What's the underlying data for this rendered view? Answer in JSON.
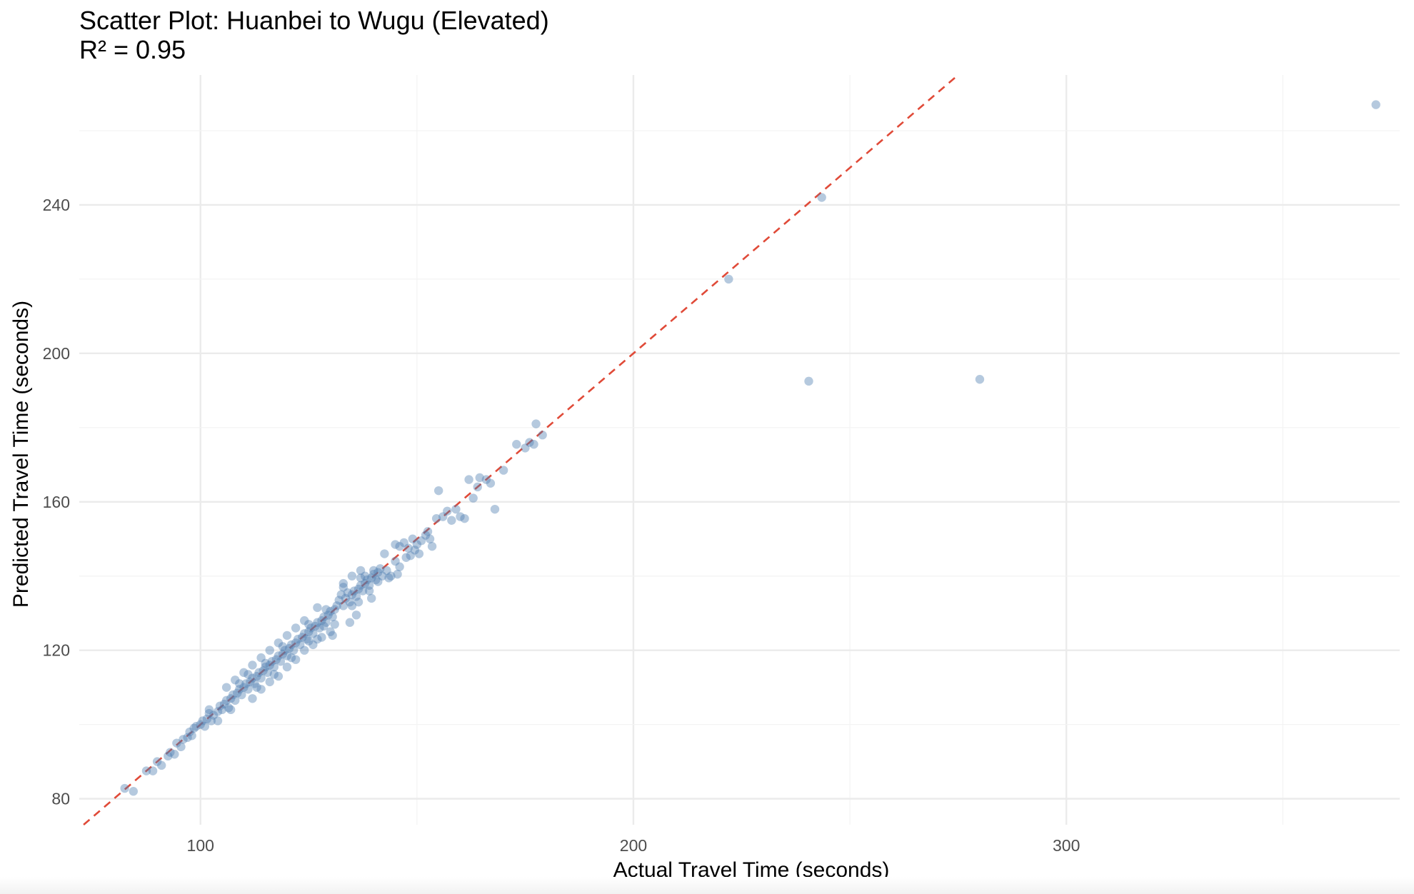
{
  "chart_data": {
    "type": "scatter",
    "title": "Scatter Plot: Huanbei to Wugu (Elevated)",
    "subtitle": "R² = 0.95",
    "xlabel": "Actual Travel Time (seconds)",
    "ylabel": "Predicted Travel Time (seconds)",
    "xlim": [
      72,
      377
    ],
    "ylim": [
      73,
      275
    ],
    "x_ticks": [
      100,
      200,
      300
    ],
    "y_ticks": [
      80,
      120,
      160,
      200,
      240
    ],
    "x_tick_labels": [
      "100",
      "200",
      "300"
    ],
    "y_tick_labels": [
      "80",
      "120",
      "160",
      "200",
      "240"
    ],
    "grid": true,
    "legend": "none",
    "colors": {
      "point": "#4f7fb0",
      "reference_line": "#e04a38"
    },
    "reference_line": {
      "style": "dashed",
      "slope": 1,
      "intercept": 0
    },
    "points": [
      [
        82.5,
        82.8
      ],
      [
        84.5,
        82
      ],
      [
        87.5,
        87.5
      ],
      [
        89,
        87.5
      ],
      [
        90,
        90
      ],
      [
        91,
        89
      ],
      [
        92.5,
        91.5
      ],
      [
        93,
        92.5
      ],
      [
        94,
        92
      ],
      [
        94.5,
        95
      ],
      [
        95.5,
        94
      ],
      [
        96,
        96
      ],
      [
        97,
        96.5
      ],
      [
        97.5,
        98
      ],
      [
        98,
        97
      ],
      [
        98.5,
        99
      ],
      [
        99,
        99.5
      ],
      [
        100,
        100
      ],
      [
        100.5,
        101
      ],
      [
        101,
        99.5
      ],
      [
        101.5,
        101.5
      ],
      [
        102,
        103
      ],
      [
        102.5,
        101
      ],
      [
        103,
        102.5
      ],
      [
        104,
        103.5
      ],
      [
        104.5,
        105
      ],
      [
        105,
        104
      ],
      [
        105.5,
        105.5
      ],
      [
        106,
        106.5
      ],
      [
        106.5,
        104.5
      ],
      [
        107,
        107
      ],
      [
        107.5,
        108
      ],
      [
        108,
        106.5
      ],
      [
        108.5,
        108.5
      ],
      [
        109,
        109.5
      ],
      [
        109.5,
        108
      ],
      [
        110,
        110
      ],
      [
        110.5,
        111
      ],
      [
        111,
        109.5
      ],
      [
        111.5,
        111.5
      ],
      [
        112,
        112.5
      ],
      [
        112.5,
        111
      ],
      [
        113,
        113
      ],
      [
        113.5,
        114
      ],
      [
        114,
        112.5
      ],
      [
        114.5,
        114.5
      ],
      [
        115,
        115.5
      ],
      [
        115.5,
        114
      ],
      [
        116,
        116
      ],
      [
        116.5,
        117
      ],
      [
        117,
        115.5
      ],
      [
        117.5,
        117.5
      ],
      [
        118,
        118.5
      ],
      [
        118.5,
        117
      ],
      [
        119,
        119
      ],
      [
        119.5,
        120
      ],
      [
        120,
        118.5
      ],
      [
        120.5,
        120.5
      ],
      [
        121,
        121.5
      ],
      [
        121.5,
        120
      ],
      [
        122,
        122
      ],
      [
        122.5,
        123
      ],
      [
        123,
        121.5
      ],
      [
        123.5,
        123.5
      ],
      [
        124,
        124.5
      ],
      [
        124.5,
        123
      ],
      [
        125,
        125
      ],
      [
        125.5,
        126
      ],
      [
        126,
        124.5
      ],
      [
        126.5,
        126.5
      ],
      [
        127,
        127.5
      ],
      [
        127.5,
        126
      ],
      [
        128,
        128
      ],
      [
        128.5,
        129
      ],
      [
        129,
        127.5
      ],
      [
        129.5,
        129.5
      ],
      [
        130,
        130.5
      ],
      [
        130.5,
        129
      ],
      [
        131,
        131
      ],
      [
        131.5,
        132
      ],
      [
        132,
        133.5
      ],
      [
        132.5,
        135
      ],
      [
        133,
        132
      ],
      [
        133.5,
        134
      ],
      [
        134,
        135.5
      ],
      [
        134.5,
        133
      ],
      [
        135,
        135
      ],
      [
        135.5,
        136
      ],
      [
        136,
        134.5
      ],
      [
        136.5,
        136.5
      ],
      [
        137,
        137.5
      ],
      [
        137.5,
        136
      ],
      [
        138,
        138
      ],
      [
        138.5,
        139
      ],
      [
        139,
        137.5
      ],
      [
        139.5,
        139.5
      ],
      [
        140,
        140.5
      ],
      [
        140.5,
        139
      ],
      [
        141,
        141
      ],
      [
        141.5,
        142
      ],
      [
        112,
        107
      ],
      [
        114,
        109.5
      ],
      [
        116,
        111.5
      ],
      [
        118,
        113
      ],
      [
        120,
        115.5
      ],
      [
        122,
        117.5
      ],
      [
        124,
        120
      ],
      [
        126,
        121.5
      ],
      [
        128,
        123.5
      ],
      [
        130,
        125
      ],
      [
        106,
        110
      ],
      [
        108,
        112
      ],
      [
        110,
        114
      ],
      [
        112,
        116
      ],
      [
        114,
        118
      ],
      [
        116,
        120
      ],
      [
        118,
        122
      ],
      [
        120,
        124
      ],
      [
        122,
        126
      ],
      [
        124,
        128
      ],
      [
        102,
        104
      ],
      [
        104,
        101
      ],
      [
        107,
        104
      ],
      [
        109,
        111
      ],
      [
        111,
        113.5
      ],
      [
        113,
        110
      ],
      [
        115,
        116.5
      ],
      [
        117,
        113.5
      ],
      [
        119,
        121
      ],
      [
        121,
        118
      ],
      [
        125,
        127
      ],
      [
        127,
        123
      ],
      [
        129,
        131
      ],
      [
        131,
        127
      ],
      [
        133,
        137
      ],
      [
        135,
        132
      ],
      [
        137,
        139.5
      ],
      [
        139,
        136
      ],
      [
        141,
        138.5
      ],
      [
        136,
        129.5
      ],
      [
        142,
        140
      ],
      [
        143,
        141.5
      ],
      [
        144,
        140
      ],
      [
        145,
        144
      ],
      [
        142.5,
        146
      ],
      [
        146,
        142.5
      ],
      [
        145.5,
        140.5
      ],
      [
        143.5,
        139.5
      ],
      [
        140,
        141.5
      ],
      [
        138,
        140
      ],
      [
        127,
        131.5
      ],
      [
        133,
        138
      ],
      [
        135,
        140
      ],
      [
        137,
        141.5
      ],
      [
        128.5,
        126.5
      ],
      [
        130.5,
        124
      ],
      [
        134.5,
        127.5
      ],
      [
        136.5,
        133
      ],
      [
        139.5,
        134
      ],
      [
        125,
        122.5
      ],
      [
        147,
        149
      ],
      [
        148,
        147.5
      ],
      [
        149,
        150
      ],
      [
        150,
        148.5
      ],
      [
        151,
        149.5
      ],
      [
        152,
        151
      ],
      [
        153,
        150
      ],
      [
        146,
        148
      ],
      [
        148.5,
        145.5
      ],
      [
        149.5,
        147
      ],
      [
        145,
        148.5
      ],
      [
        152.5,
        152
      ],
      [
        147.5,
        145
      ],
      [
        150.5,
        146
      ],
      [
        153.5,
        148
      ],
      [
        154.5,
        155.5
      ],
      [
        155,
        163
      ],
      [
        156,
        156
      ],
      [
        157,
        157.5
      ],
      [
        158,
        155
      ],
      [
        159,
        158
      ],
      [
        160,
        156
      ],
      [
        161,
        155.5
      ],
      [
        162,
        166
      ],
      [
        163,
        161
      ],
      [
        164,
        164
      ],
      [
        164.5,
        166.5
      ],
      [
        166,
        166
      ],
      [
        167,
        165
      ],
      [
        168,
        158
      ],
      [
        170,
        168.5
      ],
      [
        173,
        175.5
      ],
      [
        175,
        174.5
      ],
      [
        176,
        176
      ],
      [
        177,
        175.5
      ],
      [
        177.5,
        181
      ],
      [
        179,
        178
      ],
      [
        222,
        220
      ],
      [
        240.5,
        192.5
      ],
      [
        243.5,
        242
      ],
      [
        280,
        193
      ],
      [
        371.5,
        267
      ]
    ]
  }
}
